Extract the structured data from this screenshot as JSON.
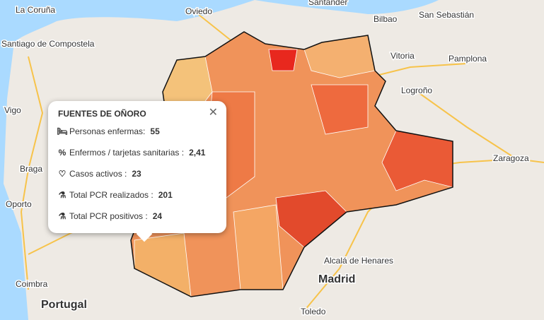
{
  "map": {
    "labels": [
      "La Coruña",
      "Oviedo",
      "Santander",
      "Bilbao",
      "San Sebastián",
      "Santiago de Compostela",
      "Vitoria",
      "Pamplona",
      "Vigo",
      "Logroño",
      "Zaragoza",
      "Braga",
      "Oporto",
      "Alcalá de Henares",
      "Madrid",
      "Coimbra",
      "Portugal",
      "Toledo"
    ]
  },
  "popup": {
    "title": "FUENTES DE OÑORO",
    "rows": [
      {
        "label": "Personas enfermas:",
        "value": "55"
      },
      {
        "icon": "%",
        "label": "Enfermos / tarjetas sanitarias :",
        "value": "2,41"
      },
      {
        "label": "Casos activos :",
        "value": "23"
      },
      {
        "label": "Total PCR realizados :",
        "value": "201"
      },
      {
        "label": "Total PCR positivos :",
        "value": "24"
      }
    ]
  }
}
